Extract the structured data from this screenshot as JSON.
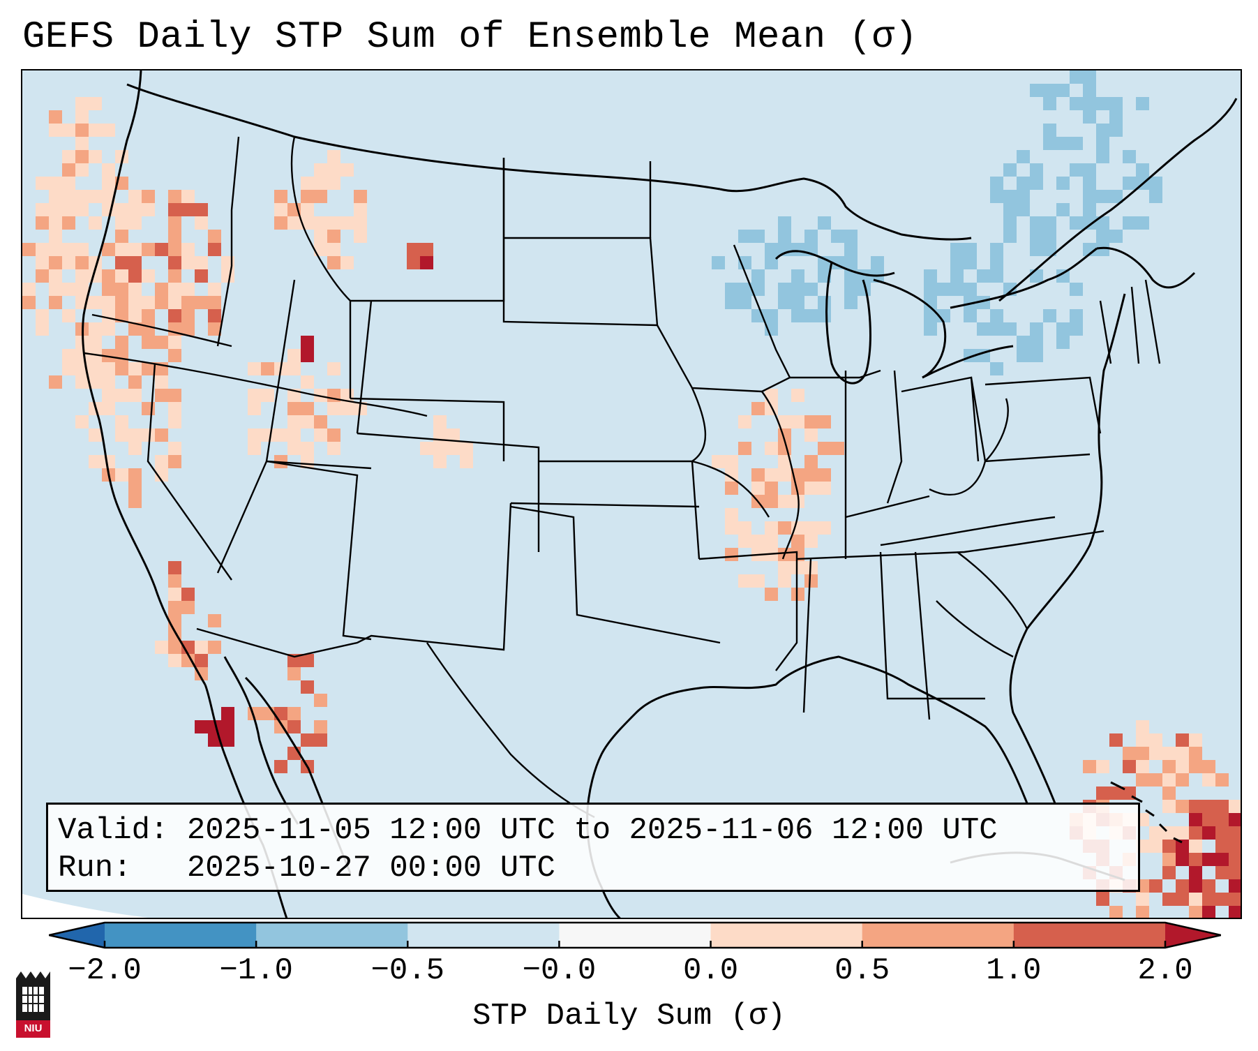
{
  "title": "GEFS Daily STP Sum of Ensemble Mean (σ)",
  "valid_box": {
    "valid_label": "Valid:",
    "valid_value": "2025-11-05 12:00 UTC to 2025-11-06 12:00 UTC",
    "run_label": "Run:",
    "run_value": "2025-10-27 00:00 UTC"
  },
  "colorbar": {
    "label": "STP Daily Sum (σ)",
    "ticks": [
      "−2.0",
      "−1.0",
      "−0.5",
      "−0.0",
      "0.0",
      "0.5",
      "1.0",
      "2.0"
    ],
    "bins": [
      {
        "range": "-2.0 to -1.0",
        "color": "#4393c3"
      },
      {
        "range": "-1.0 to -0.5",
        "color": "#92c5de"
      },
      {
        "range": "-0.5 to -0.0",
        "color": "#d1e5f0"
      },
      {
        "range": "-0.0 to 0.0",
        "color": "#f7f7f7"
      },
      {
        "range": "0.0 to 0.5",
        "color": "#fddbc7"
      },
      {
        "range": "0.5 to 1.0",
        "color": "#f4a582"
      },
      {
        "range": "1.0 to 2.0",
        "color": "#d6604d"
      }
    ],
    "under_color": "#2166ac",
    "over_color": "#b2182b"
  },
  "logo": {
    "text": "NIU",
    "icon": "university-tower-icon",
    "color": "#c8102e"
  },
  "map": {
    "region": "Contiguous United States",
    "background_color": "#d1e5f0",
    "notable_positive_areas": [
      "Pacific Northwest",
      "Northern California coast",
      "Missouri-Illinois corridor",
      "Western Atlantic east of Florida"
    ],
    "notable_negative_areas": [
      "Great Lakes",
      "Northeast / Quebec"
    ]
  }
}
